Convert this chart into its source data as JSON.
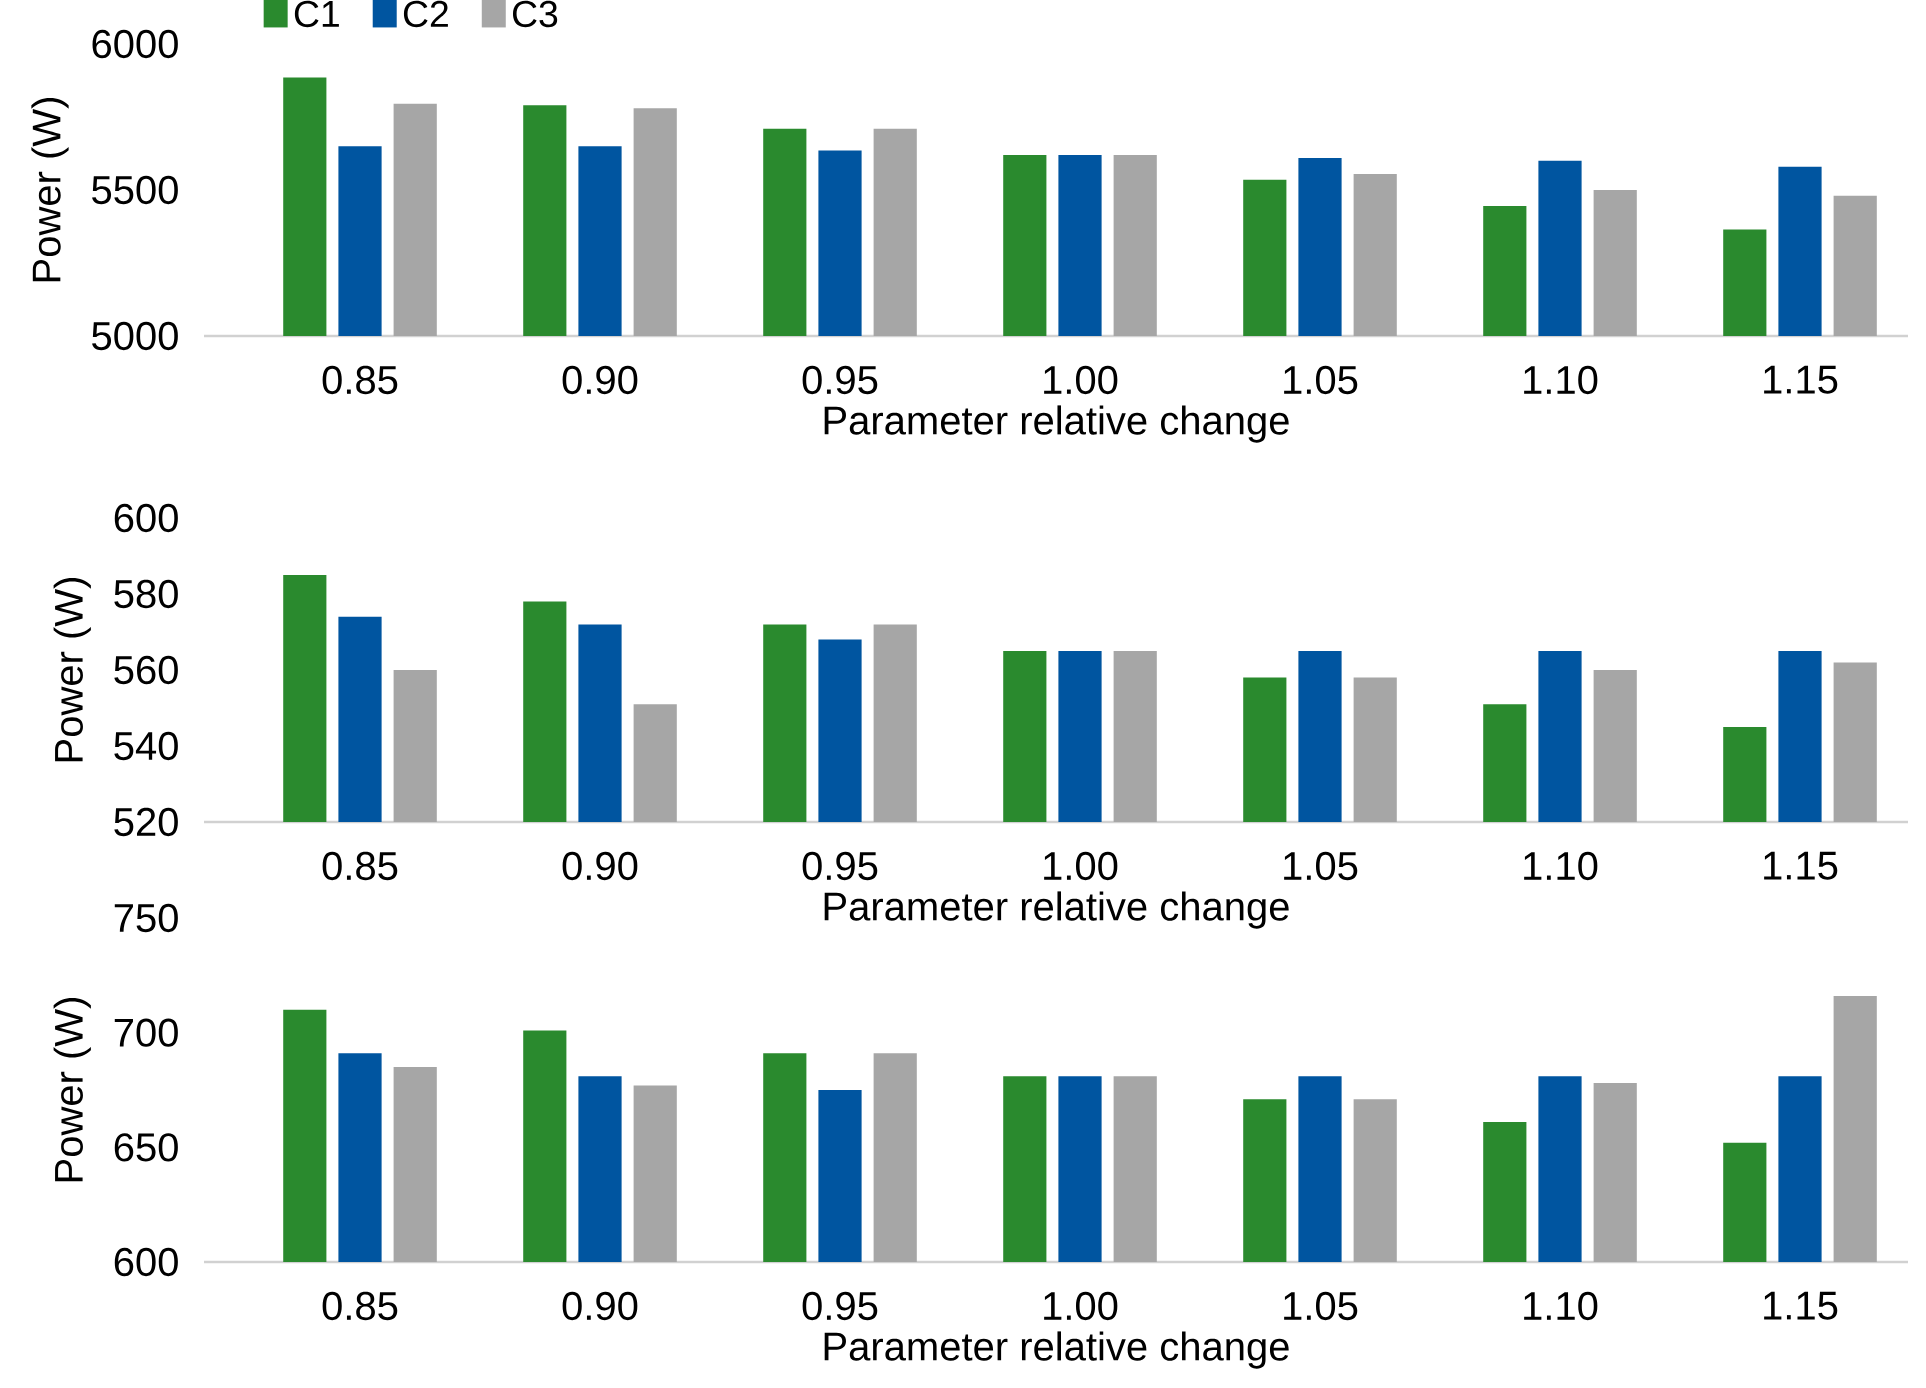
{
  "chart_data": [
    {
      "type": "bar",
      "categories": [
        "0.85",
        "0.90",
        "0.95",
        "1.00",
        "1.05",
        "1.10",
        "1.15"
      ],
      "xlabel": "Parameter relative change",
      "ylabel": "Power (W)",
      "ylim": [
        5000,
        6000
      ],
      "yticks": [
        5000,
        5500,
        6000
      ],
      "legend": "top left",
      "series": [
        {
          "name": "C1",
          "color": "#2a8a2e",
          "values": [
            5885,
            5790,
            5710,
            5620,
            5535,
            5445,
            5365
          ]
        },
        {
          "name": "C2",
          "color": "#0055a0",
          "values": [
            5650,
            5650,
            5635,
            5620,
            5610,
            5600,
            5580
          ]
        },
        {
          "name": "C3",
          "color": "#a6a6a6",
          "values": [
            5795,
            5780,
            5710,
            5620,
            5555,
            5500,
            5480
          ]
        }
      ]
    },
    {
      "type": "bar",
      "categories": [
        "0.85",
        "0.90",
        "0.95",
        "1.00",
        "1.05",
        "1.10",
        "1.15"
      ],
      "xlabel": "Parameter relative change",
      "ylabel": "Power (W)",
      "ylim": [
        520,
        600
      ],
      "yticks": [
        520,
        540,
        560,
        580,
        600
      ],
      "series": [
        {
          "color": "#2a8a2e",
          "values": [
            585,
            578,
            572,
            565,
            558,
            551,
            545
          ]
        },
        {
          "color": "#0055a0",
          "values": [
            574,
            572,
            568,
            565,
            565,
            565,
            565
          ]
        },
        {
          "color": "#a6a6a6",
          "values": [
            560,
            551,
            572,
            565,
            558,
            560,
            562
          ]
        }
      ]
    },
    {
      "type": "bar",
      "categories": [
        "0.85",
        "0.90",
        "0.95",
        "1.00",
        "1.05",
        "1.10",
        "1.15"
      ],
      "xlabel": "Parameter relative change",
      "ylabel": "Power (W)",
      "ylim": [
        600,
        750
      ],
      "yticks": [
        600,
        650,
        700,
        750
      ],
      "series": [
        {
          "color": "#2a8a2e",
          "values": [
            710,
            701,
            691,
            681,
            671,
            661,
            652
          ]
        },
        {
          "color": "#0055a0",
          "values": [
            691,
            681,
            675,
            681,
            681,
            681,
            681
          ]
        },
        {
          "color": "#a6a6a6",
          "values": [
            685,
            677,
            691,
            681,
            671,
            678,
            716
          ]
        }
      ]
    }
  ]
}
